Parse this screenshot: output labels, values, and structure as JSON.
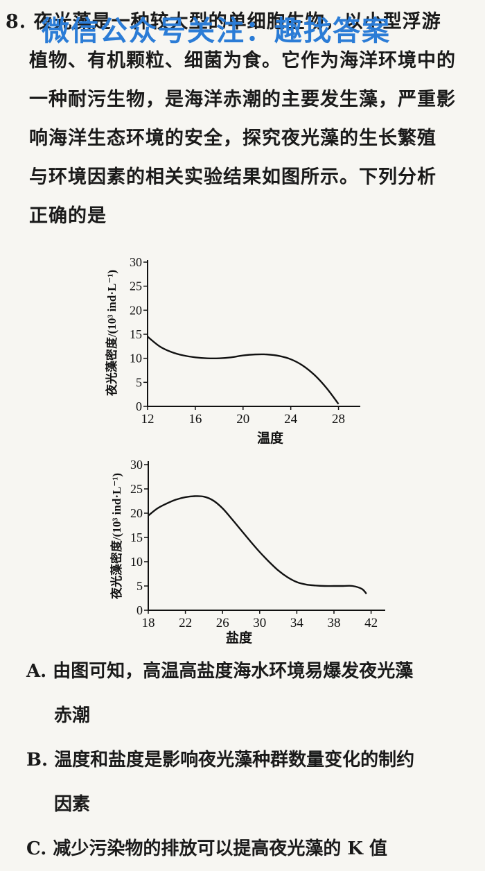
{
  "question": {
    "lines": [
      "8. 夜光藻是一种较大型的单细胞生物，以小型浮游",
      "植物、有机颗粒、细菌为食。它作为海洋环境中的",
      "一种耐污生物，是海洋赤潮的主要发生藻，严重影",
      "响海洋生态环境的安全，探究夜光藻的生长繁殖",
      "与环境因素的相关实验结果如图所示。下列分析",
      "正确的是"
    ]
  },
  "watermark": "微信公众号关注：趣找答案",
  "chart_data": [
    {
      "type": "line",
      "xlabel": "温度",
      "ylabel": "夜光藻密度/(10³ ind·L⁻¹)",
      "x_ticks": [
        "12",
        "16",
        "20",
        "24",
        "28"
      ],
      "y_ticks": [
        "0",
        "5",
        "10",
        "15",
        "20",
        "25",
        "30"
      ],
      "xlim": [
        12,
        30
      ],
      "ylim": [
        0,
        30
      ],
      "series": [
        {
          "x": [
            12,
            13,
            14,
            15,
            16,
            17,
            18,
            19,
            20,
            21,
            22,
            23,
            24,
            25,
            26,
            27,
            28
          ],
          "y": [
            14.5,
            12.5,
            11.3,
            10.6,
            10.2,
            10.0,
            10.0,
            10.2,
            10.6,
            10.8,
            10.8,
            10.5,
            9.8,
            8.5,
            6.5,
            3.8,
            0.5
          ]
        }
      ]
    },
    {
      "type": "line",
      "xlabel": "盐度",
      "ylabel": "夜光藻密度/(10³ ind·L⁻¹)",
      "x_ticks": [
        "18",
        "22",
        "26",
        "30",
        "34",
        "38",
        "42"
      ],
      "y_ticks": [
        "0",
        "5",
        "10",
        "15",
        "20",
        "25",
        "30"
      ],
      "xlim": [
        18,
        43
      ],
      "ylim": [
        0,
        30
      ],
      "series": [
        {
          "x": [
            18,
            19,
            20,
            21,
            22,
            23,
            24,
            25,
            26,
            27,
            28,
            29,
            30,
            31,
            32,
            33,
            34,
            35,
            36,
            37,
            38,
            39,
            40,
            41,
            41.5
          ],
          "y": [
            19.5,
            21.0,
            22.0,
            22.8,
            23.3,
            23.5,
            23.4,
            22.6,
            21.0,
            18.8,
            16.5,
            14.2,
            12.0,
            10.0,
            8.2,
            6.8,
            5.8,
            5.3,
            5.1,
            5.0,
            5.0,
            5.0,
            5.0,
            4.4,
            3.4
          ]
        }
      ]
    }
  ],
  "options": [
    {
      "lines": [
        "A. 由图可知，高温高盐度海水环境易爆发夜光藻",
        "赤潮"
      ]
    },
    {
      "lines": [
        "B. 温度和盐度是影响夜光藻种群数量变化的制约",
        "因素"
      ]
    },
    {
      "lines": [
        "C. 减少污染物的排放可以提高夜光藻的 K 值"
      ]
    }
  ]
}
